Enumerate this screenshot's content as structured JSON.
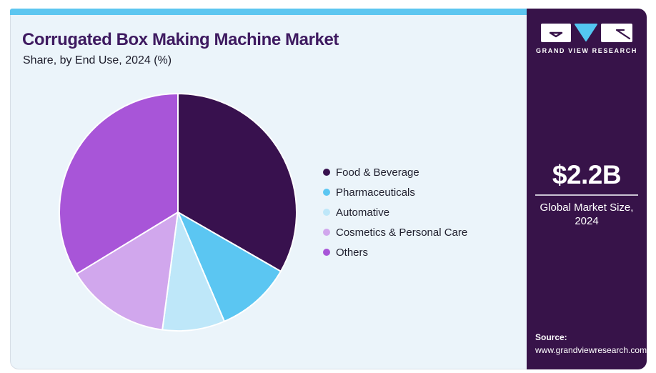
{
  "header": {
    "title": "Corrugated Box Making Machine Market",
    "subtitle": "Share, by End Use, 2024 (%)"
  },
  "chart_data": {
    "type": "pie",
    "title": "Corrugated Box Making Machine Market Share, by End Use, 2024 (%)",
    "unit": "%",
    "categories": [
      "Food & Beverage",
      "Pharmaceuticals",
      "Automative",
      "Cosmetics & Personal Care",
      "Others"
    ],
    "values": [
      33.3,
      10.3,
      8.5,
      14.2,
      33.7
    ],
    "colors": [
      "#38114e",
      "#5bc6f2",
      "#bee7f9",
      "#d1a7ed",
      "#a855d8"
    ],
    "start_angle_deg": 0,
    "direction": "clockwise",
    "legend_position": "right",
    "slice_border_color": "#ffffff"
  },
  "sidebar": {
    "logo_text": "GRAND VIEW RESEARCH",
    "market_size": "$2.2B",
    "market_label_line1": "Global Market Size,",
    "market_label_line2": "2024",
    "source_label": "Source:",
    "source_url": "www.grandviewresearch.com"
  },
  "colors": {
    "top_bar": "#5dc6f0",
    "card_background": "#ebf4fa",
    "card_border": "#d7dee6",
    "sidebar_background": "#371349",
    "title_text": "#3e1a60",
    "body_text": "#1f1f2e",
    "logo_triangle": "#53c6f0",
    "divider": "#c9c2d2"
  }
}
